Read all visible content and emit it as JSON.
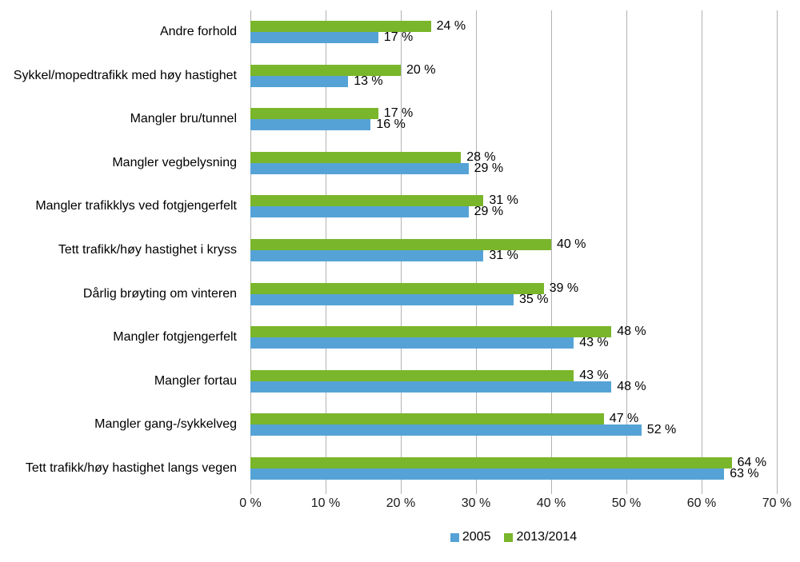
{
  "chart_data": {
    "type": "bar",
    "orientation": "horizontal",
    "title": "",
    "xlabel": "",
    "ylabel": "",
    "xlim": [
      0,
      70
    ],
    "grid": true,
    "legend_position": "bottom-center",
    "value_label_format": "{v} %",
    "x_ticks": [
      "0 %",
      "10 %",
      "20 %",
      "30 %",
      "40 %",
      "50 %",
      "60 %",
      "70 %"
    ],
    "categories": [
      "Andre forhold",
      "Sykkel/mopedtrafikk med høy hastighet",
      "Mangler bru/tunnel",
      "Mangler vegbelysning",
      "Mangler trafikklys ved fotgjengerfelt",
      "Tett trafikk/høy hastighet i kryss",
      "Dårlig brøyting om vinteren",
      "Mangler fotgjengerfelt",
      "Mangler fortau",
      "Mangler gang-/sykkelveg",
      "Tett trafikk/høy hastighet langs vegen"
    ],
    "series": [
      {
        "name": "2005",
        "color": "#55A3D6",
        "values": [
          17,
          13,
          16,
          29,
          29,
          31,
          35,
          43,
          48,
          52,
          63
        ]
      },
      {
        "name": "2013/2014",
        "color": "#7AB62B",
        "values": [
          24,
          20,
          17,
          28,
          31,
          40,
          39,
          48,
          43,
          47,
          64
        ]
      }
    ],
    "colors": {
      "gridline": "#b3b3b3",
      "text": "#000000"
    }
  },
  "legend": {
    "items": [
      {
        "label": "2005",
        "color": "#55A3D6"
      },
      {
        "label": "2013/2014",
        "color": "#7AB62B"
      }
    ]
  }
}
